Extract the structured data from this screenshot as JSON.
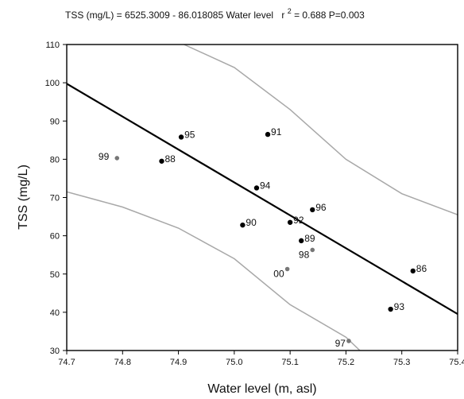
{
  "chart_data": {
    "type": "scatter",
    "title": "TSS (mg/L) = 6525.3009 - 86.018085 Water level",
    "title_stats": {
      "r_label": "r",
      "r_exp": "2",
      "r_value": " = 0.688  P=0.003"
    },
    "xlabel": "Water level (m, asl)",
    "ylabel": "TSS (mg/L)",
    "xlim": [
      74.7,
      75.4
    ],
    "ylim": [
      30,
      110
    ],
    "x_ticks": [
      "74.7",
      "74.8",
      "74.9",
      "75.0",
      "75.1",
      "75.2",
      "75.3",
      "75.4"
    ],
    "y_ticks": [
      "30",
      "40",
      "50",
      "60",
      "70",
      "80",
      "90",
      "100",
      "110"
    ],
    "grid": false,
    "points": [
      {
        "label": "86",
        "x": 75.32,
        "y": 50.8,
        "color": "#000000"
      },
      {
        "label": "88",
        "x": 74.87,
        "y": 79.5,
        "color": "#000000"
      },
      {
        "label": "89",
        "x": 75.12,
        "y": 58.7,
        "color": "#000000"
      },
      {
        "label": "90",
        "x": 75.015,
        "y": 62.8,
        "color": "#000000"
      },
      {
        "label": "91",
        "x": 75.06,
        "y": 86.5,
        "color": "#000000"
      },
      {
        "label": "92",
        "x": 75.1,
        "y": 63.5,
        "color": "#000000"
      },
      {
        "label": "93",
        "x": 75.28,
        "y": 40.8,
        "color": "#000000"
      },
      {
        "label": "94",
        "x": 75.04,
        "y": 72.5,
        "color": "#000000"
      },
      {
        "label": "95",
        "x": 74.905,
        "y": 85.8,
        "color": "#000000"
      },
      {
        "label": "96",
        "x": 75.14,
        "y": 66.8,
        "color": "#000000"
      },
      {
        "label": "97",
        "x": 75.205,
        "y": 32.5,
        "color": "#777777"
      },
      {
        "label": "98",
        "x": 75.14,
        "y": 56.3,
        "color": "#777777"
      },
      {
        "label": "99",
        "x": 74.79,
        "y": 80.3,
        "color": "#777777"
      },
      {
        "label": "00",
        "x": 75.095,
        "y": 51.3,
        "color": "#777777"
      }
    ],
    "regression": {
      "intercept": 6525.3009,
      "slope": -86.018085,
      "color": "#000000"
    },
    "confidence_band": {
      "color": "#a8a8a8",
      "upper": [
        [
          74.91,
          110
        ],
        [
          75.0,
          104
        ],
        [
          75.1,
          93
        ],
        [
          75.2,
          80
        ],
        [
          75.3,
          71
        ],
        [
          75.4,
          65.5
        ]
      ],
      "lower": [
        [
          74.7,
          71.5
        ],
        [
          74.8,
          67.5
        ],
        [
          74.9,
          62
        ],
        [
          75.0,
          54
        ],
        [
          75.1,
          42
        ],
        [
          75.2,
          33.5
        ],
        [
          75.225,
          30
        ]
      ]
    }
  }
}
